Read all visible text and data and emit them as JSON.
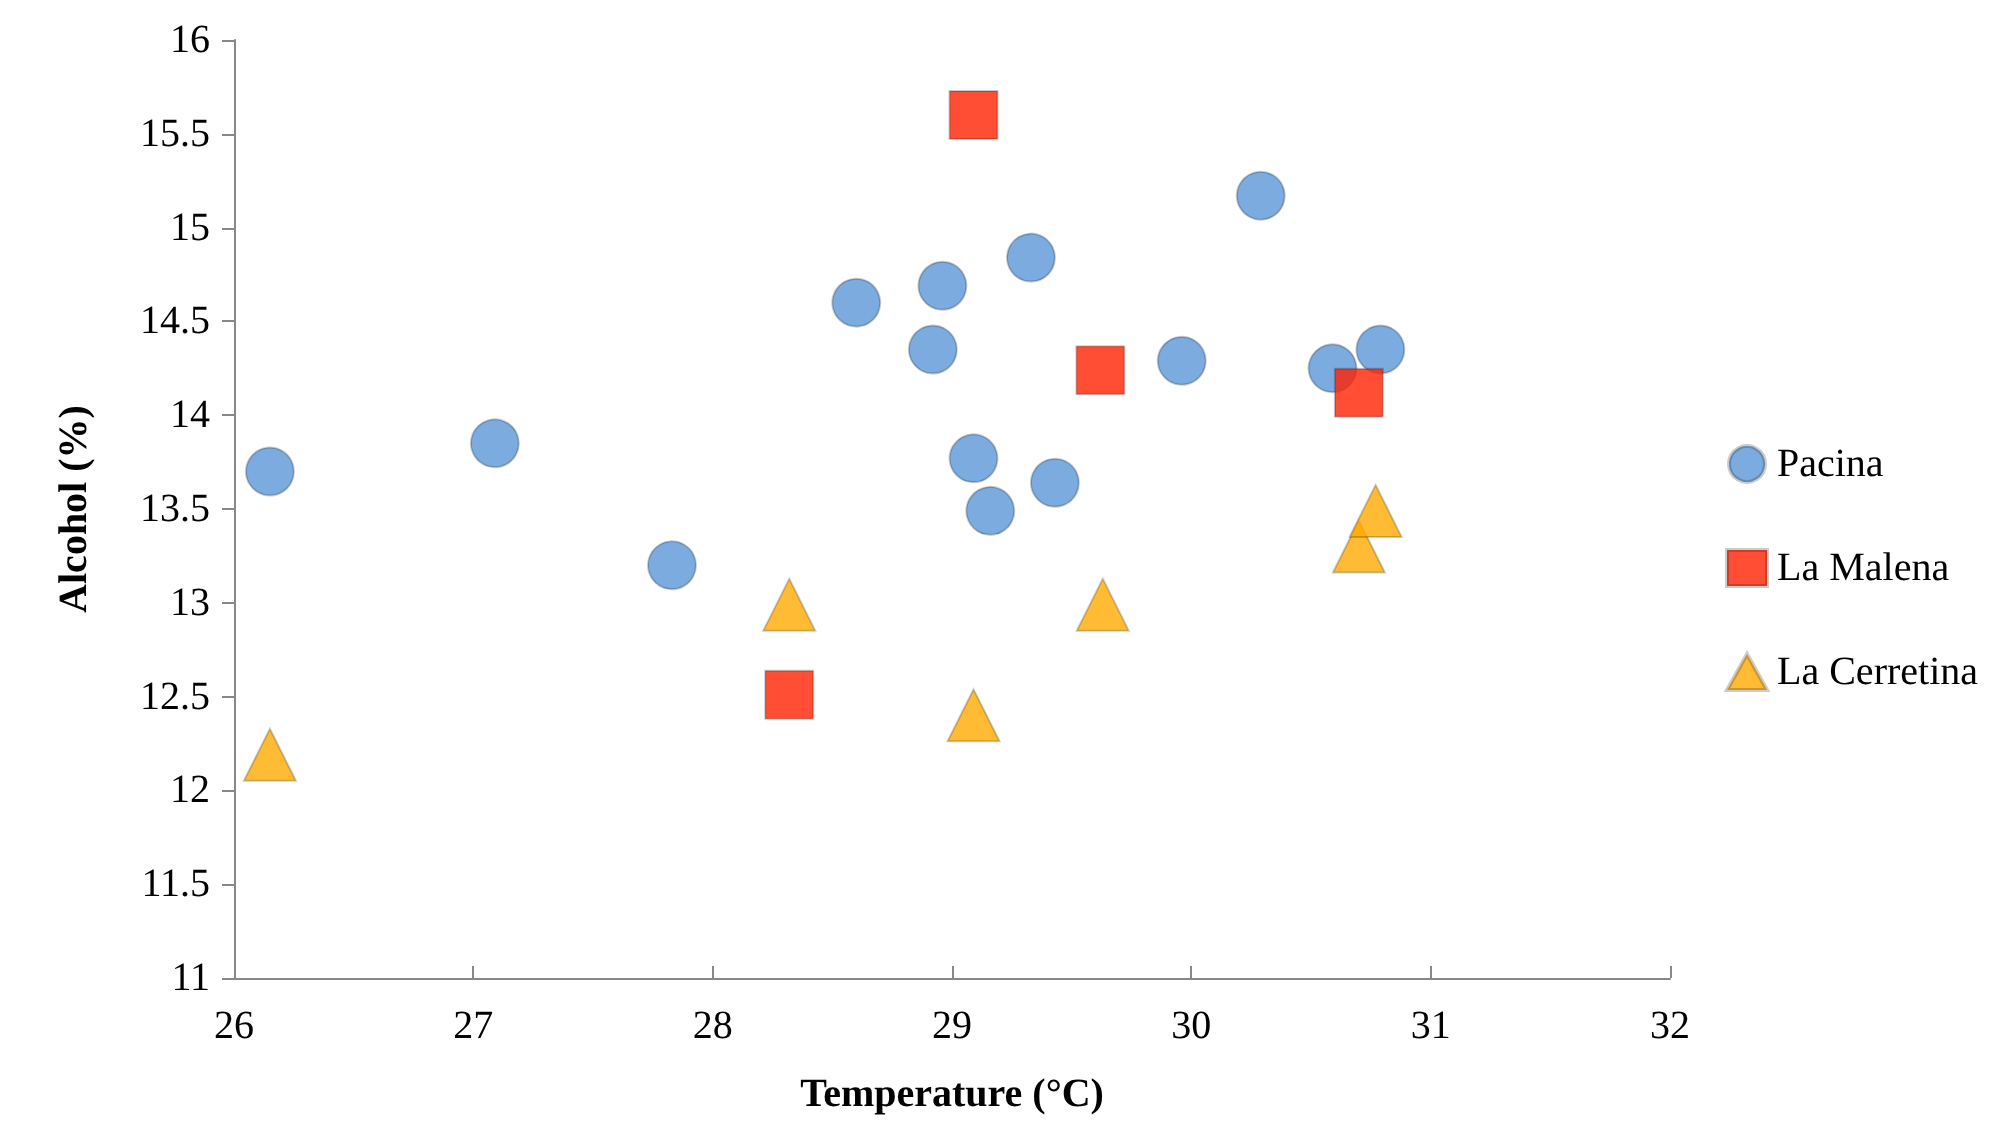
{
  "chart_data": {
    "type": "scatter",
    "xlabel": "Temperature (°C)",
    "ylabel": "Alcohol (%)",
    "xlim": [
      26,
      32
    ],
    "xticks": [
      26,
      27,
      28,
      29,
      30,
      31,
      32
    ],
    "ylim": [
      11,
      16
    ],
    "yticks": [
      11,
      11.5,
      12,
      12.5,
      13,
      13.5,
      14,
      14.5,
      15,
      15.5,
      16
    ],
    "grid": false,
    "legend": "right",
    "series": [
      {
        "name": "Pacina",
        "color": "#5b96d8",
        "marker": "circle",
        "x": [
          26.15,
          27.09,
          27.83,
          28.6,
          28.96,
          28.92,
          29.33,
          29.09,
          29.16,
          29.43,
          29.96,
          30.29,
          30.59,
          30.79
        ],
        "values": [
          13.7,
          13.85,
          13.2,
          14.6,
          14.69,
          14.35,
          14.84,
          13.77,
          13.49,
          13.64,
          14.29,
          15.17,
          14.25,
          14.35
        ]
      },
      {
        "name": "La Malena",
        "color": "#ff2200",
        "marker": "square",
        "x": [
          29.09,
          29.62,
          30.7,
          28.32
        ],
        "values": [
          15.6,
          14.24,
          14.12,
          12.51
        ]
      },
      {
        "name": "La Cerretina",
        "color": "#ffaa00",
        "marker": "triangle",
        "x": [
          26.15,
          28.32,
          29.09,
          29.63,
          30.7,
          30.77
        ],
        "values": [
          12.19,
          12.99,
          12.4,
          12.99,
          13.3,
          13.49
        ]
      }
    ]
  }
}
